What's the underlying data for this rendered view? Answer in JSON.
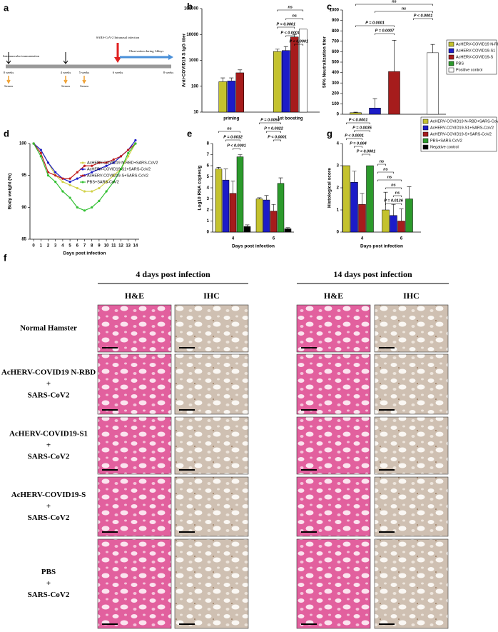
{
  "panel_a": {
    "label": "a",
    "texts": [
      "Intramuscular immunization",
      "0 weeks",
      "Serum",
      "4 weeks",
      "Serum",
      "5 weeks",
      "Serum",
      "SARS-CoV-2 Intranasal infection",
      "6 weeks",
      "Observation during 14days",
      "8 weeks"
    ]
  },
  "chart_data": [
    {
      "type": "bar",
      "panel": "b",
      "y_label": "Anti-COVID19 S IgG titer",
      "yscale": "log",
      "categories": [
        "priming",
        "1st boosting"
      ],
      "series": [
        {
          "color": "#c4c22e",
          "values": [
            150,
            2200
          ],
          "errors": [
            60,
            500
          ]
        },
        {
          "color": "#1c1cc8",
          "values": [
            160,
            2400
          ],
          "errors": [
            50,
            1000
          ]
        },
        {
          "color": "#a61c1c",
          "values": [
            330,
            8000
          ],
          "errors": [
            100,
            2000
          ]
        },
        {
          "color": "#ffffff",
          "values": [
            null,
            16000
          ],
          "errors": [
            null,
            null
          ]
        }
      ],
      "ylim": [
        10,
        100000
      ],
      "yticks": [
        10,
        100,
        1000,
        10000,
        100000
      ],
      "annotations": [
        "ns",
        "ns",
        "P < 0.0001",
        "P < 0.0001",
        "P < 0.0001"
      ]
    },
    {
      "type": "bar",
      "panel": "c",
      "y_label": "50% Neutralization titer",
      "categories": [
        null
      ],
      "series": [
        {
          "name": "AcHERV-COVID19 N-RBD",
          "color": "#c4c22e",
          "values": [
            15
          ],
          "errors": [
            5
          ]
        },
        {
          "name": "AcHERV-COVID19-S1",
          "color": "#1c1cc8",
          "values": [
            60
          ],
          "errors": [
            90
          ]
        },
        {
          "name": "AcHERV-COVID19-S",
          "color": "#a61c1c",
          "values": [
            410
          ],
          "errors": [
            300
          ]
        },
        {
          "name": "PBS",
          "color": "#2c9a2c",
          "values": [
            0
          ],
          "errors": [
            null
          ]
        },
        {
          "name": "Positive control",
          "color": "#ffffff",
          "values": [
            590
          ],
          "errors": [
            80
          ]
        }
      ],
      "ylim": [
        0,
        1000
      ],
      "yticks": [
        0,
        100,
        200,
        300,
        400,
        500,
        600,
        700,
        800,
        900,
        1000
      ],
      "legend": "outside right",
      "annotations": [
        "ns",
        "ns",
        "P < 0.0001",
        "P = 0.0001",
        "P = 0.0007"
      ]
    },
    {
      "type": "line",
      "panel": "d",
      "y_label": "Body weight (%)",
      "x_label": "Days post infection",
      "x": [
        0,
        1,
        2,
        3,
        4,
        5,
        6,
        7,
        8,
        9,
        10,
        11,
        12,
        13,
        14
      ],
      "series": [
        {
          "name": "AcHERV-COVID19 N-RBD+SARS-CoV2",
          "color": "#d2d24a",
          "values": [
            100,
            99,
            97,
            95,
            94,
            93.5,
            93,
            92.5,
            92.5,
            93,
            94,
            95,
            96,
            98,
            100
          ]
        },
        {
          "name": "AcHERV-COVID19-S1+SARS-CoV2",
          "color": "#1c1cc8",
          "values": [
            100,
            99,
            97,
            95.5,
            94.5,
            94,
            94.5,
            95,
            95.5,
            96,
            96.5,
            97,
            98,
            99,
            100.5
          ]
        },
        {
          "name": "AcHERV-COVID19-S+SARS-CoV2",
          "color": "#c01c1c",
          "values": [
            100,
            98.5,
            95.5,
            95,
            94.5,
            94.5,
            95.5,
            96.5,
            96.5,
            97,
            97,
            97.5,
            98,
            99,
            100
          ]
        },
        {
          "name": "PBS+SARS-CoV2",
          "color": "#33c033",
          "values": [
            100,
            98,
            95,
            94,
            92.5,
            91.5,
            90,
            89.5,
            90,
            91,
            92.5,
            94,
            96,
            98.5,
            100
          ]
        }
      ],
      "xlim": [
        -0.5,
        14.5
      ],
      "xticks": [
        0,
        1,
        2,
        3,
        4,
        5,
        6,
        7,
        8,
        9,
        10,
        11,
        12,
        13,
        14
      ],
      "ylim": [
        85,
        100
      ],
      "yticks": [
        85,
        90,
        95,
        100
      ],
      "legend": "upper right"
    },
    {
      "type": "bar",
      "panel": "e",
      "y_label": "Log10 RNA copies/g",
      "x_label": "Days post infection",
      "categories": [
        "4",
        "6"
      ],
      "series": [
        {
          "color": "#c4c22e",
          "values": [
            5.7,
            3.0
          ],
          "errors": [
            0.15,
            0.1
          ]
        },
        {
          "color": "#1c1cc8",
          "values": [
            4.7,
            2.9
          ],
          "errors": [
            1.0,
            0.4
          ]
        },
        {
          "color": "#a61c1c",
          "values": [
            3.5,
            1.9
          ],
          "errors": [
            1.1,
            0.6
          ]
        },
        {
          "color": "#2c9a2c",
          "values": [
            6.8,
            4.4
          ],
          "errors": [
            0.2,
            0.5
          ]
        },
        {
          "color": "#000000",
          "values": [
            0.5,
            0.3
          ],
          "errors": [
            0.15,
            0.1
          ]
        }
      ],
      "ylim": [
        0,
        8
      ],
      "yticks": [
        0,
        1,
        2,
        3,
        4,
        5,
        6,
        7,
        8
      ],
      "annotations": [
        "ns",
        "P = 0.0032",
        "P < 0.0001",
        "P = 0.0054",
        "P = 0.0022",
        "P < 0.0001"
      ]
    },
    {
      "type": "bar",
      "panel": "g",
      "y_label": "Histological score",
      "x_label": "Days post infection",
      "categories": [
        "4",
        "6"
      ],
      "series": [
        {
          "name": "AcHERV-COVID19 N-RBD+SARS-CoV2",
          "color": "#c4c22e",
          "values": [
            3,
            1
          ],
          "errors": [
            null,
            0.8
          ]
        },
        {
          "name": "AcHERV-COVID19-S1+SARS-CoV2",
          "color": "#1c1cc8",
          "values": [
            2.25,
            0.75
          ],
          "errors": [
            0.5,
            0.5
          ]
        },
        {
          "name": "AcHERV-COVID19-S+SARS-CoV2",
          "color": "#a61c1c",
          "values": [
            1.25,
            0.5
          ],
          "errors": [
            0.5,
            0.55
          ]
        },
        {
          "name": "PBS+SARS-CoV2",
          "color": "#2c9a2c",
          "values": [
            3,
            1.5
          ],
          "errors": [
            null,
            0.55
          ]
        },
        {
          "name": "Negative control",
          "color": "#000000",
          "values": [
            0,
            0
          ],
          "errors": [
            null,
            null
          ]
        }
      ],
      "ylim": [
        0,
        4
      ],
      "yticks": [
        0,
        1,
        2,
        3,
        4
      ],
      "legend": "outside upper right",
      "annotations": [
        "P < 0.0001",
        "P = 0.0035",
        "P < 0.0001",
        "P = 0.004",
        "P < 0.0001",
        "ns",
        "ns",
        "ns",
        "ns",
        "ns",
        "P = 0.0136"
      ]
    }
  ],
  "panel_f": {
    "label": "f",
    "time_headers": [
      "4 days post infection",
      "14 days post infection"
    ],
    "stain_headers": [
      "H&E",
      "IHC",
      "H&E",
      "IHC"
    ],
    "rows": [
      [
        "Normal Hamster"
      ],
      [
        "AcHERV-COVID19 N-RBD",
        "+",
        "SARS-CoV2"
      ],
      [
        "AcHERV-COVID19-S1",
        "+",
        "SARS-CoV2"
      ],
      [
        "AcHERV-COVID19-S",
        "+",
        "SARS-CoV2"
      ],
      [
        "PBS",
        "+",
        "SARS-CoV2"
      ]
    ]
  }
}
